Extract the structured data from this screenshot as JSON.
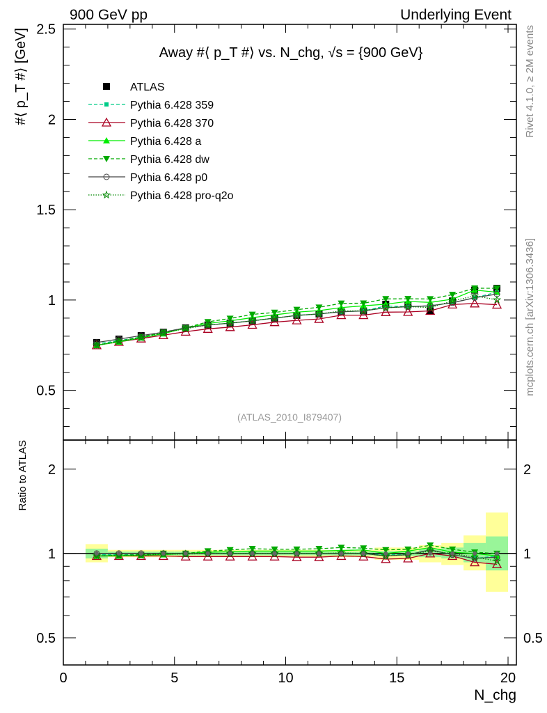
{
  "header": {
    "left": "900 GeV pp",
    "right": "Underlying Event"
  },
  "side": {
    "top": "Rivet 4.1.0, ≥ 2M events",
    "bottom": "mcplots.cern.ch [arXiv:1306.3436]"
  },
  "chart_data": {
    "type": "line",
    "title": "Away #⟨ p_T #⟩ vs. N_chg, √s = {900 GeV}",
    "ylabel": "#⟨ p_T #⟩ [GeV]",
    "xlabel": "N_chg",
    "ratio_ylabel": "Ratio to ATLAS",
    "watermark": "(ATLAS_2010_I879407)",
    "xlim": [
      0,
      20.375
    ],
    "ylim": [
      0.225,
      2.526
    ],
    "ratio_ylim": [
      0.4,
      2.54
    ],
    "ratio_scale": "log",
    "xticks": [
      "0",
      "5",
      "10",
      "15",
      "20"
    ],
    "yticks": [
      "0.5",
      "1",
      "1.5",
      "2",
      "2.5"
    ],
    "ratio_yticks": [
      "0.5",
      "1",
      "2"
    ],
    "legend_placement": "top-left",
    "x": [
      1.5,
      2.5,
      3.5,
      4.5,
      5.5,
      6.5,
      7.5,
      8.5,
      9.5,
      10.5,
      11.5,
      12.5,
      13.5,
      14.5,
      15.5,
      16.5,
      17.5,
      18.5,
      19.5
    ],
    "atlas": [
      0.765,
      0.784,
      0.803,
      0.822,
      0.846,
      0.862,
      0.872,
      0.885,
      0.9,
      0.915,
      0.923,
      0.935,
      0.94,
      0.977,
      0.973,
      0.94,
      0.995,
      1.055,
      1.065
    ],
    "band_total": [
      [
        0.93,
        1.08
      ],
      [
        0.97,
        1.03
      ],
      [
        0.97,
        1.03
      ],
      [
        0.97,
        1.03
      ],
      [
        0.97,
        1.03
      ],
      [
        0.97,
        1.03
      ],
      [
        0.97,
        1.03
      ],
      [
        0.97,
        1.03
      ],
      [
        0.97,
        1.03
      ],
      [
        0.97,
        1.03
      ],
      [
        0.97,
        1.03
      ],
      [
        0.97,
        1.03
      ],
      [
        0.97,
        1.03
      ],
      [
        0.95,
        1.05
      ],
      [
        0.95,
        1.05
      ],
      [
        0.93,
        1.07
      ],
      [
        0.91,
        1.09
      ],
      [
        0.87,
        1.16
      ],
      [
        0.73,
        1.4
      ]
    ],
    "band_stat": [
      [
        0.96,
        1.04
      ],
      [
        0.985,
        1.015
      ],
      [
        0.985,
        1.015
      ],
      [
        0.985,
        1.015
      ],
      [
        0.985,
        1.015
      ],
      [
        0.985,
        1.015
      ],
      [
        0.985,
        1.015
      ],
      [
        0.985,
        1.015
      ],
      [
        0.985,
        1.015
      ],
      [
        0.985,
        1.015
      ],
      [
        0.985,
        1.015
      ],
      [
        0.985,
        1.015
      ],
      [
        0.985,
        1.015
      ],
      [
        0.98,
        1.02
      ],
      [
        0.98,
        1.02
      ],
      [
        0.97,
        1.04
      ],
      [
        0.96,
        1.05
      ],
      [
        0.93,
        1.09
      ],
      [
        0.87,
        1.15
      ]
    ],
    "series": [
      {
        "name": "Pythia 6.428 359",
        "color": "#00cc88",
        "dash": "5,3",
        "marker": "square-small",
        "ratio": [
          0.99,
          0.99,
          0.99,
          1.0,
          1.0,
          1.0,
          1.0,
          1.0,
          1.0,
          1.0,
          1.0,
          1.0,
          1.0,
          0.99,
          0.99,
          1.03,
          0.99,
          0.96,
          0.98
        ]
      },
      {
        "name": "Pythia 6.428 370",
        "color": "#aa0022",
        "dash": "",
        "marker": "triangle-open",
        "ratio": [
          0.98,
          0.98,
          0.98,
          0.98,
          0.975,
          0.975,
          0.975,
          0.975,
          0.975,
          0.97,
          0.97,
          0.98,
          0.975,
          0.955,
          0.96,
          1.0,
          0.98,
          0.93,
          0.915
        ]
      },
      {
        "name": "Pythia 6.428 a",
        "color": "#00ee00",
        "dash": "",
        "marker": "triangle-up",
        "ratio": [
          0.98,
          0.98,
          0.985,
          0.99,
          1.0,
          1.01,
          1.015,
          1.02,
          1.02,
          1.02,
          1.02,
          1.025,
          1.03,
          1.0,
          1.02,
          1.05,
          1.01,
          1.0,
          0.98
        ]
      },
      {
        "name": "Pythia 6.428 dw",
        "color": "#00aa00",
        "dash": "5,3",
        "marker": "triangle-down",
        "ratio": [
          0.98,
          0.985,
          0.99,
          1.0,
          1.0,
          1.02,
          1.03,
          1.04,
          1.035,
          1.035,
          1.04,
          1.05,
          1.045,
          1.03,
          1.035,
          1.07,
          1.035,
          1.01,
          1.0
        ]
      },
      {
        "name": "Pythia 6.428 p0",
        "color": "#444444",
        "dash": "",
        "marker": "circle-open",
        "ratio": [
          1.0,
          1.0,
          1.0,
          1.0,
          1.0,
          1.0,
          1.0,
          1.0,
          1.0,
          1.0,
          1.0,
          1.0,
          1.0,
          0.98,
          0.99,
          1.03,
          0.99,
          0.96,
          0.97
        ]
      },
      {
        "name": "Pythia 6.428 pro-q2o",
        "color": "#008800",
        "dash": "1.5,2",
        "marker": "star",
        "ratio": [
          0.98,
          0.985,
          0.985,
          0.995,
          0.995,
          1.0,
          1.0,
          1.0,
          1.0,
          1.0,
          1.0,
          1.005,
          1.0,
          0.98,
          0.99,
          1.02,
          1.0,
          0.97,
          0.94
        ]
      }
    ],
    "atlas_name": "ATLAS"
  }
}
